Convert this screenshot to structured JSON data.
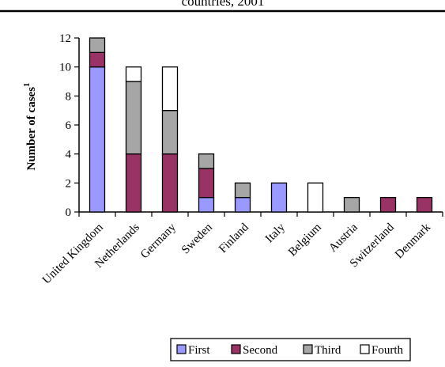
{
  "chart_data": {
    "type": "bar",
    "stacked": true,
    "title": "countries, 2001",
    "xlabel": "",
    "ylabel": "Number of cases",
    "ylabel_superscript": "1",
    "ylim": [
      0,
      12
    ],
    "yticks": [
      0,
      2,
      4,
      6,
      8,
      10,
      12
    ],
    "grid": false,
    "legend_position": "bottom-right",
    "categories": [
      "United Kingdom",
      "Netherlands",
      "Germany",
      "Sweden",
      "Finland",
      "Italy",
      "Belgium",
      "Austria",
      "Switzerland",
      "Denmark"
    ],
    "series": [
      {
        "name": "First",
        "color": "#9999ff",
        "values": [
          10,
          0,
          0,
          1,
          1,
          2,
          0,
          0,
          0,
          0
        ]
      },
      {
        "name": "Second",
        "color": "#993366",
        "values": [
          1,
          4,
          4,
          2,
          0,
          0,
          0,
          0,
          1,
          1
        ]
      },
      {
        "name": "Third",
        "color": "#a6a6a6",
        "values": [
          1,
          5,
          3,
          1,
          1,
          0,
          0,
          1,
          0,
          0
        ]
      },
      {
        "name": "Fourth",
        "color": "#ffffff",
        "values": [
          0,
          1,
          3,
          0,
          0,
          0,
          2,
          0,
          0,
          0
        ]
      }
    ]
  }
}
